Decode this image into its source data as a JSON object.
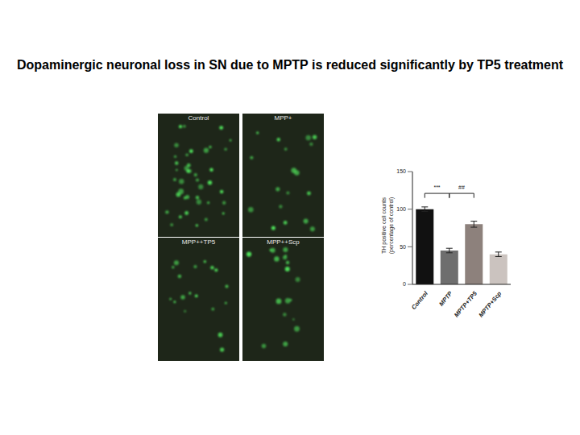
{
  "title": "Dopaminergic neuronal loss in SN due to MPTP is reduced significantly by TP5 treatment",
  "panels": [
    "Control",
    "MPP+",
    "MPP++TP5",
    "MPP++Scp"
  ],
  "chart_data": {
    "type": "bar",
    "categories": [
      "Control",
      "MPTP",
      "MPTP+TP5",
      "MPTP+Scp"
    ],
    "values": [
      100,
      45,
      80,
      40
    ],
    "errors": [
      3,
      3,
      4,
      3
    ],
    "colors": [
      "#111111",
      "#6e6e6e",
      "#8d817c",
      "#cbc3bf"
    ],
    "y_label": "TH positive cell counts (percentage of control)",
    "ylim": [
      0,
      150
    ],
    "yticks": [
      0,
      50,
      100,
      150
    ],
    "annotations": [
      {
        "text": "***",
        "from": "Control",
        "to": "MPTP"
      },
      {
        "text": "##",
        "from": "MPTP",
        "to": "MPTP+TP5"
      }
    ]
  }
}
